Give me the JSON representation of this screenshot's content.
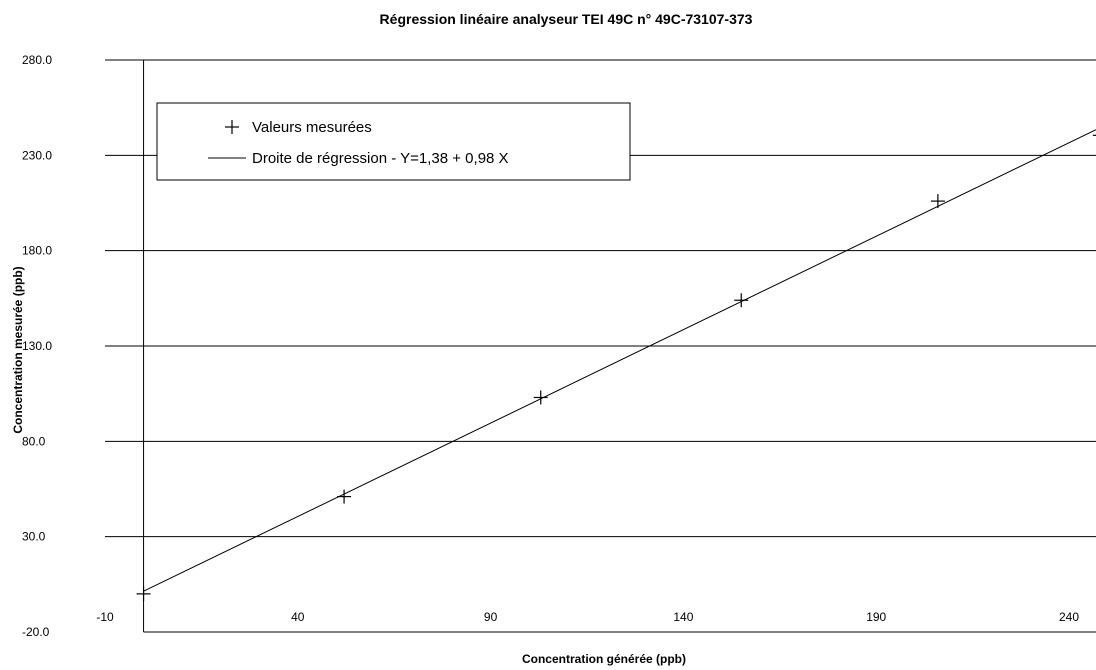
{
  "chart_data": {
    "type": "scatter",
    "title": "Régression linéaire analyseur TEI 49C n° 49C-73107-373",
    "xlabel": "Concentration générée (ppb)",
    "ylabel": "Concentration mesurée (ppb)",
    "xlim": [
      -10,
      247
    ],
    "ylim": [
      -20,
      280
    ],
    "x_ticks": [
      -10,
      40,
      90,
      140,
      190,
      240
    ],
    "x_tick_labels": [
      "-10",
      "40",
      "90",
      "140",
      "190",
      "240"
    ],
    "y_ticks": [
      -20,
      30,
      80,
      130,
      180,
      230,
      280
    ],
    "y_tick_labels": [
      "-20.0",
      "30.0",
      "80.0",
      "130.0",
      "180.0",
      "230.0",
      "280.0"
    ],
    "grid": "horizontal",
    "legend_position": "top-left",
    "series": [
      {
        "name": "Valeurs mesurées",
        "marker": "plus",
        "x": [
          0,
          52,
          103,
          155,
          206,
          248
        ],
        "y": [
          0,
          51,
          103,
          154,
          206,
          240.5
        ]
      },
      {
        "name": "Droite de régression - Y=1,38 + 0,98 X",
        "style": "line",
        "intercept": 1.38,
        "slope": 0.98
      }
    ],
    "colors": {
      "marks": "#000000",
      "grid": "#000000",
      "background": "#ffffff"
    }
  }
}
